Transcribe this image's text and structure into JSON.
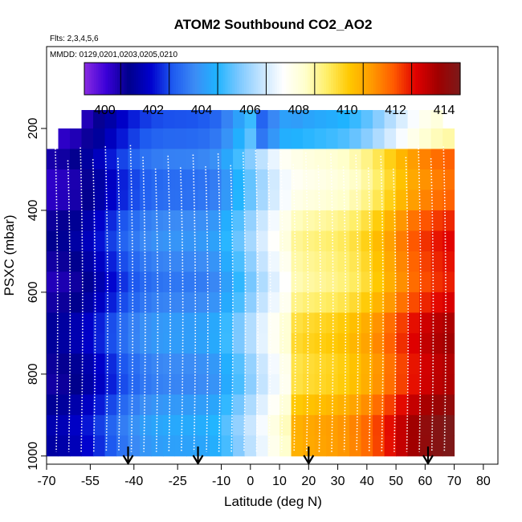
{
  "chart_data": {
    "type": "heatmap",
    "title": "ATOM2 Southbound CO2_AO2",
    "subtitle_flights": "Flts: 2,3,4,5,6",
    "subtitle_dates": "MMDD: 0129,0201,0203,0205,0210",
    "xlabel": "Latitude (deg N)",
    "ylabel": "PSXC (mbar)",
    "xlim": [
      -70,
      85
    ],
    "ylim": [
      1020,
      0
    ],
    "x_ticks": [
      -70,
      -55,
      -40,
      -25,
      -10,
      0,
      10,
      20,
      30,
      40,
      50,
      60,
      70,
      80
    ],
    "y_ticks": [
      200,
      400,
      600,
      800,
      1000
    ],
    "colorbar": {
      "min": 398.5,
      "max": 414,
      "ticks": [
        400,
        402,
        404,
        406,
        408,
        410,
        412,
        414
      ],
      "colors": [
        "#8a2be2",
        "#3a00d8",
        "#00008b",
        "#0000cd",
        "#1e5af0",
        "#3c8cf5",
        "#1fb4ff",
        "#7cc8ff",
        "#c4e4ff",
        "#ffffff",
        "#ffffcc",
        "#ffee66",
        "#ffc800",
        "#ff9a00",
        "#ff5a00",
        "#e00000",
        "#a00000",
        "#7b1a1a"
      ]
    },
    "latitude_bins": [
      -68,
      -64,
      -60,
      -56,
      -52,
      -48,
      -44,
      -40,
      -36,
      -32,
      -28,
      -24,
      -20,
      -16,
      -12,
      -8,
      -4,
      0,
      4,
      8,
      12,
      16,
      20,
      24,
      28,
      32,
      36,
      40,
      44,
      48,
      52,
      56,
      60,
      64,
      68
    ],
    "pressure_levels": [
      180,
      225,
      275,
      325,
      375,
      425,
      475,
      525,
      575,
      625,
      675,
      725,
      775,
      825,
      875,
      925,
      975
    ],
    "arrow_latitudes": [
      -42,
      -18,
      20,
      61
    ],
    "description_series": [
      {
        "lat_range": [
          -70,
          -10
        ],
        "co2_range": [
          400.0,
          404.0
        ]
      },
      {
        "lat_range": [
          -10,
          15
        ],
        "co2_range": [
          404.0,
          407.0
        ]
      },
      {
        "lat_range": [
          15,
          72
        ],
        "co2_range": [
          407.5,
          412.5
        ]
      }
    ]
  }
}
